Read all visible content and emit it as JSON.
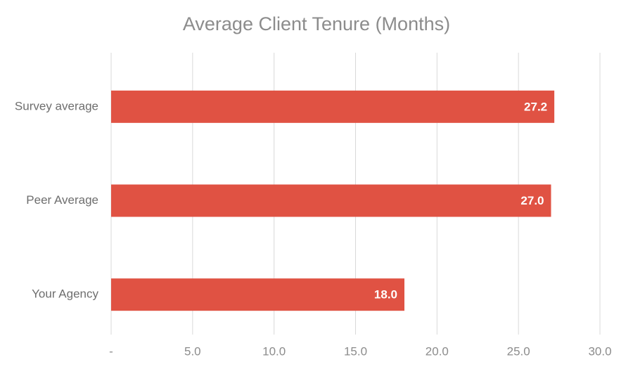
{
  "chart_data": {
    "type": "hbar",
    "title": "Average Client Tenure (Months)",
    "categories": [
      "Survey average",
      "Peer Average",
      "Your Agency"
    ],
    "values": [
      27.2,
      27.0,
      18.0
    ],
    "value_labels": [
      "27.2",
      "27.0",
      "18.0"
    ],
    "color": "#e05243",
    "xlim": [
      0,
      30
    ],
    "xticks": [
      {
        "value": 0,
        "label": "-"
      },
      {
        "value": 5,
        "label": "5.0"
      },
      {
        "value": 10,
        "label": "10.0"
      },
      {
        "value": 15,
        "label": "15.0"
      },
      {
        "value": 20,
        "label": "20.0"
      },
      {
        "value": 25,
        "label": "25.0"
      },
      {
        "value": 30,
        "label": "30.0"
      }
    ],
    "grid": true
  }
}
